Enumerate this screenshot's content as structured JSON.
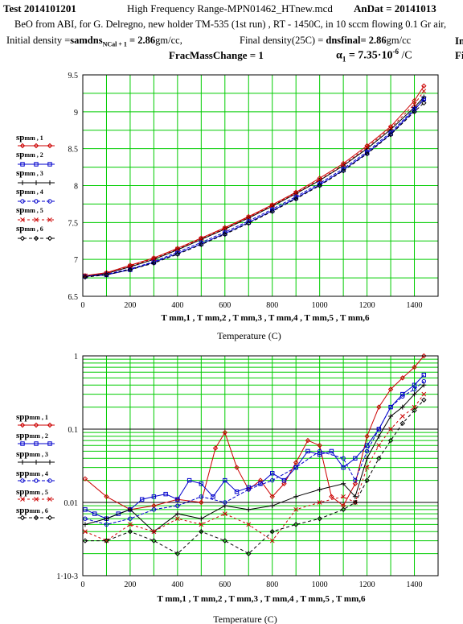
{
  "header": {
    "test_label": "Test",
    "test_value": "2014101201",
    "title": "High Frequency Range-MPN01462_HTnew.mcd",
    "andat_label": "AnDat",
    "andat_value": "20141013",
    "line2": "BeO from ABI, for G. Delregno, new holder TM-535 (1st run) , RT - 1450C, in 10 sccm flowing 0.1 Gr air,",
    "initial_density_label": "Initial density =",
    "initial_density_var": "samdns",
    "initial_density_sub": "NCal + 1",
    "initial_density_value": "= 2.86",
    "initial_density_unit": "gm/cc,",
    "final_density_label": "Final density(25C) =",
    "final_density_var": "dnsfinal",
    "final_density_value": "= 2.86",
    "final_density_unit": "gm/cc",
    "frac_label": "FracMassChange",
    "frac_value": "= 1",
    "alpha_label": "α",
    "alpha_sub": "1",
    "alpha_value": "= 7.35·10",
    "alpha_exp": "-6",
    "alpha_unit": "/C",
    "right_clip_1": "In",
    "right_clip_2": "Fi"
  },
  "colors": {
    "grid": "#00cc00",
    "series1": "#cc0000",
    "series2": "#0000cc",
    "series3": "#000000",
    "series4": "#0000cc",
    "series5": "#cc0000",
    "series6": "#000000"
  },
  "chart_data": [
    {
      "type": "line",
      "xlabel_vars": "T mm,1 , T mm,2 , T mm,3 , T mm,4 , T mm,5 , T mm,6",
      "xlabel": "Temperature (C)",
      "xlim": [
        0,
        1500
      ],
      "ylim": [
        6.5,
        9.5
      ],
      "xticks": [
        "0",
        "200",
        "400",
        "600",
        "800",
        "1000",
        "1200",
        "1400"
      ],
      "yticks": [
        "6.5",
        "7",
        "7.5",
        "8",
        "8.5",
        "9",
        "9.5"
      ],
      "grid": true,
      "legend_position": "left",
      "series": [
        {
          "name": "sp mm,1",
          "marker": "diamond",
          "x": [
            10,
            100,
            200,
            300,
            400,
            500,
            600,
            700,
            800,
            900,
            1000,
            1100,
            1200,
            1300,
            1400,
            1440
          ],
          "values": [
            6.78,
            6.82,
            6.92,
            7.02,
            7.15,
            7.29,
            7.43,
            7.58,
            7.74,
            7.91,
            8.1,
            8.3,
            8.54,
            8.8,
            9.15,
            9.35
          ]
        },
        {
          "name": "sp mm,2",
          "marker": "square",
          "x": [
            10,
            100,
            200,
            300,
            400,
            500,
            600,
            700,
            800,
            900,
            1000,
            1100,
            1200,
            1300,
            1400,
            1440
          ],
          "values": [
            6.77,
            6.79,
            6.86,
            6.96,
            7.08,
            7.21,
            7.35,
            7.5,
            7.66,
            7.83,
            8.01,
            8.21,
            8.44,
            8.7,
            9.02,
            9.18
          ]
        },
        {
          "name": "sp mm,3",
          "marker": "plus",
          "x": [
            10,
            100,
            200,
            300,
            400,
            500,
            600,
            700,
            800,
            900,
            1000,
            1100,
            1200,
            1300,
            1400,
            1440
          ],
          "values": [
            6.77,
            6.81,
            6.9,
            7.0,
            7.13,
            7.27,
            7.41,
            7.56,
            7.72,
            7.89,
            8.07,
            8.27,
            8.5,
            8.76,
            9.06,
            9.2
          ]
        },
        {
          "name": "sp mm,4",
          "marker": "circle",
          "x": [
            10,
            100,
            200,
            300,
            400,
            500,
            600,
            700,
            800,
            900,
            1000,
            1100,
            1200,
            1300,
            1400,
            1440
          ],
          "values": [
            6.77,
            6.8,
            6.87,
            6.97,
            7.1,
            7.23,
            7.37,
            7.52,
            7.68,
            7.85,
            8.03,
            8.23,
            8.46,
            8.72,
            9.04,
            9.16
          ]
        },
        {
          "name": "sp mm,5",
          "marker": "x",
          "x": [
            10,
            100,
            200,
            300,
            400,
            500,
            600,
            700,
            800,
            900,
            1000,
            1100,
            1200,
            1300,
            1400,
            1440
          ],
          "values": [
            6.78,
            6.81,
            6.91,
            7.01,
            7.14,
            7.28,
            7.42,
            7.57,
            7.73,
            7.9,
            8.08,
            8.28,
            8.52,
            8.78,
            9.1,
            9.28
          ]
        },
        {
          "name": "sp mm,6",
          "marker": "diamond",
          "x": [
            10,
            100,
            200,
            300,
            400,
            500,
            600,
            700,
            800,
            900,
            1000,
            1100,
            1200,
            1300,
            1400,
            1440
          ],
          "values": [
            6.76,
            6.79,
            6.86,
            6.95,
            7.07,
            7.2,
            7.34,
            7.49,
            7.65,
            7.82,
            8.0,
            8.2,
            8.43,
            8.69,
            9.0,
            9.12
          ]
        }
      ]
    },
    {
      "type": "line",
      "xlabel_vars": "T mm,1 , T mm,2 , T mm,3 , T mm,4 , T mm,5 , T mm,6",
      "xlabel": "Temperature (C)",
      "xlim": [
        0,
        1500
      ],
      "ylim": [
        0.001,
        1
      ],
      "yscale": "log",
      "xticks": [
        "0",
        "200",
        "400",
        "600",
        "800",
        "1000",
        "1200",
        "1400"
      ],
      "yticks": [
        "1·10-3",
        "0.01",
        "0.1",
        "1"
      ],
      "grid": true,
      "legend_position": "left",
      "series": [
        {
          "name": "spp mm,1",
          "x": [
            10,
            100,
            200,
            300,
            400,
            500,
            560,
            600,
            650,
            700,
            750,
            800,
            850,
            900,
            950,
            1000,
            1050,
            1100,
            1150,
            1200,
            1250,
            1300,
            1350,
            1400,
            1440
          ],
          "values": [
            0.021,
            0.012,
            0.008,
            0.009,
            0.011,
            0.01,
            0.055,
            0.09,
            0.03,
            0.015,
            0.02,
            0.012,
            0.018,
            0.035,
            0.07,
            0.06,
            0.012,
            0.009,
            0.018,
            0.08,
            0.2,
            0.35,
            0.5,
            0.7,
            1.0
          ]
        },
        {
          "name": "spp mm,2",
          "x": [
            10,
            50,
            100,
            150,
            200,
            250,
            300,
            350,
            400,
            450,
            500,
            550,
            600,
            650,
            700,
            750,
            800,
            850,
            900,
            950,
            1000,
            1050,
            1100,
            1150,
            1200,
            1250,
            1300,
            1350,
            1400,
            1440
          ],
          "values": [
            0.008,
            0.007,
            0.006,
            0.007,
            0.008,
            0.011,
            0.012,
            0.013,
            0.011,
            0.02,
            0.018,
            0.012,
            0.02,
            0.014,
            0.016,
            0.018,
            0.025,
            0.02,
            0.03,
            0.05,
            0.045,
            0.05,
            0.03,
            0.04,
            0.06,
            0.1,
            0.2,
            0.3,
            0.4,
            0.55
          ]
        },
        {
          "name": "spp mm,3",
          "x": [
            10,
            100,
            200,
            300,
            400,
            500,
            600,
            700,
            800,
            900,
            1000,
            1100,
            1150,
            1200,
            1250,
            1300,
            1350,
            1400,
            1440
          ],
          "values": [
            0.005,
            0.006,
            0.008,
            0.004,
            0.007,
            0.006,
            0.009,
            0.008,
            0.009,
            0.012,
            0.015,
            0.018,
            0.012,
            0.04,
            0.08,
            0.15,
            0.2,
            0.3,
            0.4
          ]
        },
        {
          "name": "spp mm,4",
          "x": [
            10,
            100,
            200,
            300,
            400,
            500,
            600,
            700,
            800,
            900,
            1000,
            1100,
            1150,
            1200,
            1250,
            1300,
            1350,
            1400,
            1440
          ],
          "values": [
            0.006,
            0.005,
            0.006,
            0.008,
            0.009,
            0.012,
            0.01,
            0.015,
            0.02,
            0.03,
            0.05,
            0.04,
            0.02,
            0.05,
            0.1,
            0.2,
            0.28,
            0.35,
            0.45
          ]
        },
        {
          "name": "spp mm,5",
          "x": [
            10,
            100,
            200,
            300,
            400,
            500,
            600,
            700,
            800,
            900,
            1000,
            1100,
            1150,
            1200,
            1250,
            1300,
            1350,
            1400,
            1440
          ],
          "values": [
            0.004,
            0.003,
            0.005,
            0.004,
            0.006,
            0.005,
            0.007,
            0.005,
            0.003,
            0.008,
            0.01,
            0.012,
            0.01,
            0.03,
            0.06,
            0.1,
            0.15,
            0.2,
            0.3
          ]
        },
        {
          "name": "spp mm,6",
          "x": [
            10,
            100,
            200,
            300,
            400,
            500,
            600,
            700,
            800,
            900,
            1000,
            1100,
            1150,
            1200,
            1250,
            1300,
            1350,
            1400,
            1440
          ],
          "values": [
            0.003,
            0.003,
            0.004,
            0.003,
            0.002,
            0.004,
            0.003,
            0.002,
            0.004,
            0.005,
            0.006,
            0.008,
            0.01,
            0.02,
            0.04,
            0.07,
            0.12,
            0.18,
            0.25
          ]
        }
      ]
    }
  ]
}
